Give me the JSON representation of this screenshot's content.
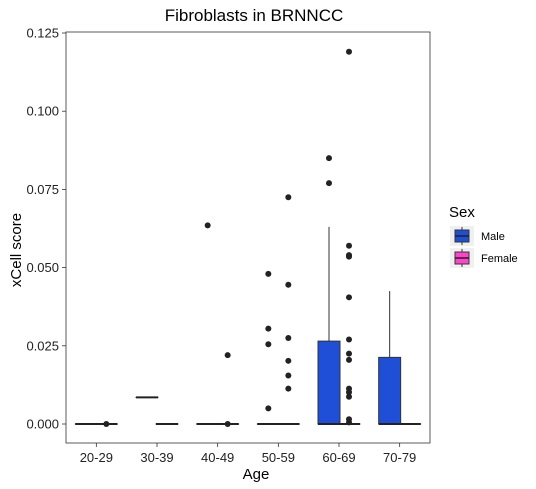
{
  "chart_data": {
    "type": "box",
    "title": "Fibroblasts in BRNNCC",
    "xlabel": "Age",
    "ylabel": "xCell score",
    "ylim": [
      0,
      0.125
    ],
    "yticks": [
      "0.000",
      "0.025",
      "0.050",
      "0.075",
      "0.100",
      "0.125"
    ],
    "categories": [
      "20-29",
      "30-39",
      "40-49",
      "50-59",
      "60-69",
      "70-79"
    ],
    "legend": {
      "title": "Sex",
      "placement": "right",
      "entries": [
        {
          "name": "Male",
          "color": "#1f4fd6"
        },
        {
          "name": "Female",
          "color": "#ff44cc"
        }
      ]
    },
    "grid": false,
    "series": [
      {
        "name": "Male",
        "color": "#1f4fd6",
        "boxes": [
          {
            "category": "20-29",
            "min": 0,
            "q1": 0,
            "median": 0,
            "q3": 0,
            "max": 0,
            "outliers": []
          },
          {
            "category": "30-39",
            "min": 0.0085,
            "q1": 0.0085,
            "median": 0.0085,
            "q3": 0.0085,
            "max": 0.0085,
            "outliers": []
          },
          {
            "category": "40-49",
            "min": 0,
            "q1": 0,
            "median": 0,
            "q3": 0,
            "max": 0,
            "outliers": [
              0.0635
            ]
          },
          {
            "category": "50-59",
            "min": 0,
            "q1": 0,
            "median": 0,
            "q3": 0,
            "max": 0,
            "outliers": [
              0.048,
              0.0305,
              0.0255,
              0.005
            ]
          },
          {
            "category": "60-69",
            "min": 0,
            "q1": 0,
            "median": 0,
            "q3": 0.0265,
            "max": 0.063,
            "outliers": [
              0.085,
              0.077
            ]
          },
          {
            "category": "70-79",
            "min": 0,
            "q1": 0,
            "median": 0,
            "q3": 0.0213,
            "max": 0.0425,
            "outliers": []
          }
        ]
      },
      {
        "name": "Female",
        "color": "#ff44cc",
        "boxes": [
          {
            "category": "20-29",
            "min": 0,
            "q1": 0,
            "median": 0,
            "q3": 0,
            "max": 0,
            "outliers": [
              0
            ]
          },
          {
            "category": "30-39",
            "min": 0,
            "q1": 0,
            "median": 0,
            "q3": 0,
            "max": 0,
            "outliers": []
          },
          {
            "category": "40-49",
            "min": 0,
            "q1": 0,
            "median": 0,
            "q3": 0,
            "max": 0,
            "outliers": [
              0.022,
              0
            ]
          },
          {
            "category": "50-59",
            "min": 0,
            "q1": 0,
            "median": 0,
            "q3": 0,
            "max": 0,
            "outliers": [
              0.0725,
              0.0445,
              0.0275,
              0.0202,
              0.0155,
              0.0113
            ]
          },
          {
            "category": "60-69",
            "min": 0,
            "q1": 0,
            "median": 0,
            "q3": 0,
            "max": 0,
            "outliers": [
              0.119,
              0.057,
              0.054,
              0.0535,
              0.0405,
              0.027,
              0.0225,
              0.0205,
              0.0113,
              0.0102,
              0.0087,
              0.0015,
              0.0005
            ]
          },
          {
            "category": "70-79",
            "min": 0,
            "q1": 0,
            "median": 0,
            "q3": 0,
            "max": 0,
            "outliers": []
          }
        ]
      }
    ]
  }
}
